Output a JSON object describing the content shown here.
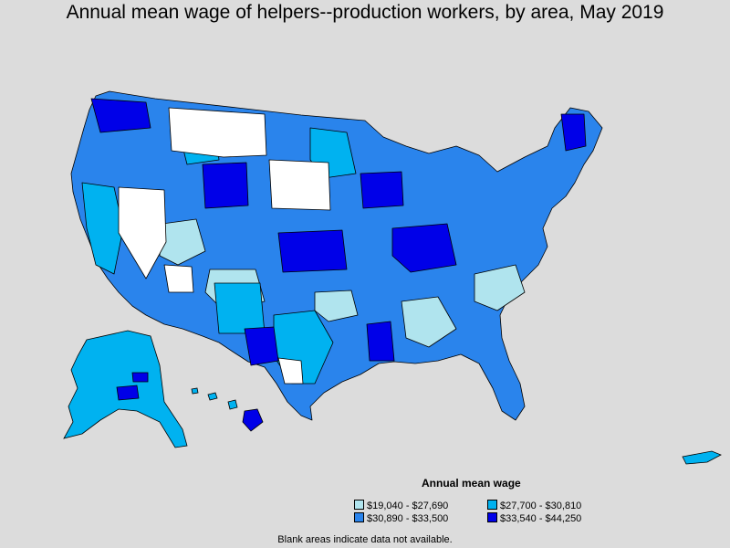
{
  "title": "Annual mean wage of helpers--production workers, by area, May 2019",
  "legend": {
    "title": "Annual mean wage",
    "items": [
      {
        "label": "$19,040 - $27,690",
        "color": "#b0e4ee"
      },
      {
        "label": "$27,700 - $30,810",
        "color": "#00b2f0"
      },
      {
        "label": "$30,890 - $33,500",
        "color": "#2a84ec"
      },
      {
        "label": "$33,540 - $44,250",
        "color": "#0000e8"
      }
    ]
  },
  "footnote": "Blank areas indicate data not available.",
  "colors": {
    "background": "#dcdcdc",
    "no_data": "#ffffff",
    "border": "#000000"
  }
}
